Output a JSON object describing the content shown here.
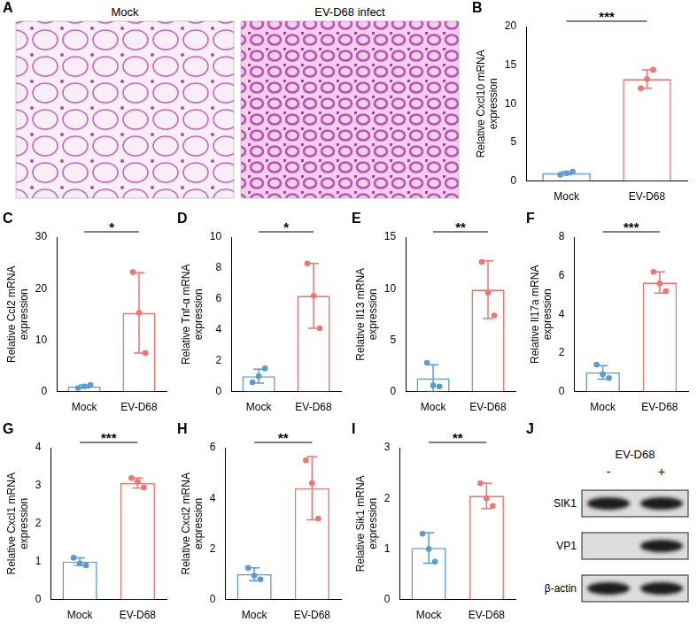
{
  "images": {
    "panel": "A",
    "titles": [
      "Mock",
      "EV-D68 infect"
    ]
  },
  "chart_data": [
    {
      "panel": "B",
      "type": "bar",
      "y_label": "Relative Cxcl10 mRNA expression",
      "categories": [
        "Mock",
        "EV-D68"
      ],
      "values": [
        1.0,
        13.2
      ],
      "errors": [
        0.2,
        1.2
      ],
      "points": [
        [
          0.8,
          1.0,
          1.2
        ],
        [
          12.0,
          13.2,
          14.4
        ]
      ],
      "colors": [
        "#5b9bd5",
        "#f07470"
      ],
      "ylim": [
        0,
        20
      ],
      "yticks": [
        0,
        5,
        10,
        15,
        20
      ],
      "grid": false,
      "annotation": "***"
    },
    {
      "panel": "C",
      "type": "bar",
      "y_label": "Relative Ccl2 mRNA expression",
      "categories": [
        "Mock",
        "EV-D68"
      ],
      "values": [
        1.0,
        15.3
      ],
      "errors": [
        0.3,
        7.8
      ],
      "points": [
        [
          0.7,
          1.0,
          1.3
        ],
        [
          23.2,
          15.3,
          7.5
        ]
      ],
      "colors": [
        "#5b9bd5",
        "#f07470"
      ],
      "ylim": [
        0,
        30
      ],
      "yticks": [
        0,
        10,
        20,
        30
      ],
      "grid": false,
      "annotation": "*"
    },
    {
      "panel": "D",
      "type": "bar",
      "y_label": "Relative Tnf-α mRNA expression",
      "categories": [
        "Mock",
        "EV-D68"
      ],
      "values": [
        1.0,
        6.2
      ],
      "errors": [
        0.45,
        2.1
      ],
      "points": [
        [
          0.6,
          1.0,
          1.5
        ],
        [
          8.3,
          6.2,
          4.1
        ]
      ],
      "colors": [
        "#5b9bd5",
        "#f07470"
      ],
      "ylim": [
        0,
        10
      ],
      "yticks": [
        0,
        2,
        4,
        6,
        8,
        10
      ],
      "grid": false,
      "annotation": "*"
    },
    {
      "panel": "E",
      "type": "bar",
      "y_label": "Relative Il13 mRNA expression",
      "categories": [
        "Mock",
        "EV-D68"
      ],
      "values": [
        1.3,
        9.9
      ],
      "errors": [
        1.3,
        2.8
      ],
      "points": [
        [
          2.8,
          0.6,
          0.5
        ],
        [
          12.6,
          9.6,
          7.4
        ]
      ],
      "colors": [
        "#5b9bd5",
        "#f07470"
      ],
      "ylim": [
        0,
        15
      ],
      "yticks": [
        0,
        5,
        10,
        15
      ],
      "grid": false,
      "annotation": "**"
    },
    {
      "panel": "F",
      "type": "bar",
      "y_label": "Relative Il17a mRNA expression",
      "categories": [
        "Mock",
        "EV-D68"
      ],
      "values": [
        1.0,
        5.65
      ],
      "errors": [
        0.35,
        0.55
      ],
      "points": [
        [
          1.4,
          0.9,
          0.7
        ],
        [
          6.2,
          5.6,
          5.2
        ]
      ],
      "colors": [
        "#5b9bd5",
        "#f07470"
      ],
      "ylim": [
        0,
        8
      ],
      "yticks": [
        0,
        2,
        4,
        6,
        8
      ],
      "grid": false,
      "annotation": "***"
    },
    {
      "panel": "G",
      "type": "bar",
      "y_label": "Relative Cxcl1 mRNA expression",
      "categories": [
        "Mock",
        "EV-D68"
      ],
      "values": [
        1.0,
        3.07
      ],
      "errors": [
        0.1,
        0.13
      ],
      "points": [
        [
          1.1,
          0.95,
          0.9
        ],
        [
          3.2,
          3.1,
          2.95
        ]
      ],
      "colors": [
        "#5b9bd5",
        "#f07470"
      ],
      "ylim": [
        0,
        4
      ],
      "yticks": [
        0,
        1,
        2,
        3,
        4
      ],
      "grid": false,
      "annotation": "***"
    },
    {
      "panel": "H",
      "type": "bar",
      "y_label": "Relative Cxcl2 mRNA expression",
      "categories": [
        "Mock",
        "EV-D68"
      ],
      "values": [
        1.0,
        4.4
      ],
      "errors": [
        0.25,
        1.25
      ],
      "points": [
        [
          1.25,
          0.95,
          0.8
        ],
        [
          5.5,
          4.6,
          3.2
        ]
      ],
      "colors": [
        "#5b9bd5",
        "#f07470"
      ],
      "ylim": [
        0,
        6
      ],
      "yticks": [
        0,
        2,
        4,
        6
      ],
      "grid": false,
      "annotation": "**"
    },
    {
      "panel": "I",
      "type": "bar",
      "y_label": "Relative Sik1 mRNA expression",
      "categories": [
        "Mock",
        "EV-D68"
      ],
      "values": [
        1.02,
        2.05
      ],
      "errors": [
        0.3,
        0.25
      ],
      "points": [
        [
          1.3,
          1.0,
          0.75
        ],
        [
          2.3,
          2.0,
          1.85
        ]
      ],
      "colors": [
        "#5b9bd5",
        "#f07470"
      ],
      "ylim": [
        0,
        3
      ],
      "yticks": [
        0,
        1,
        2,
        3
      ],
      "grid": false,
      "annotation": "**"
    }
  ],
  "blot": {
    "panel": "J",
    "treatment": "EV-D68",
    "lanes": [
      "-",
      "+"
    ],
    "rows": [
      {
        "label": "SIK1",
        "bands": [
          true,
          true
        ]
      },
      {
        "label": "VP1",
        "bands": [
          false,
          true
        ]
      },
      {
        "label": "β-actin",
        "bands": [
          true,
          true
        ]
      }
    ]
  }
}
